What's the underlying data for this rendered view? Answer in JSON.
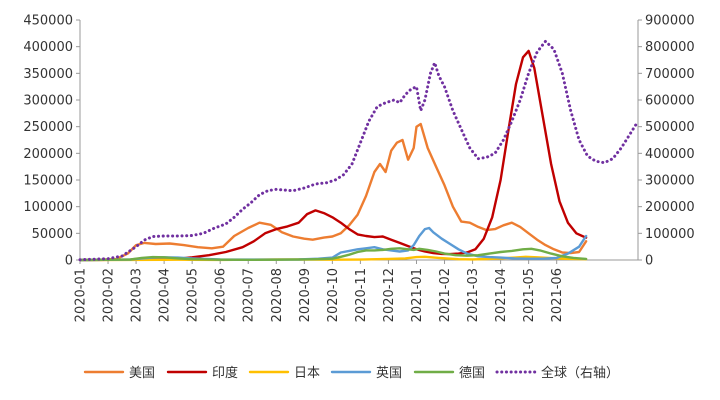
{
  "chart_data": {
    "type": "line",
    "title": "",
    "xlabel": "",
    "ylabel": "",
    "y2label": "",
    "x_categories": [
      "2020-01",
      "2020-02",
      "2020-03",
      "2020-04",
      "2020-05",
      "2020-06",
      "2020-07",
      "2020-08",
      "2020-09",
      "2020-10",
      "2020-11",
      "2020-12",
      "2021-01",
      "2021-02",
      "2021-03",
      "2021-04",
      "2021-05",
      "2021-06"
    ],
    "ylim_left": [
      0,
      450000
    ],
    "ylim_right": [
      0,
      900000
    ],
    "yticks_left": [
      "0",
      "50000",
      "100000",
      "150000",
      "200000",
      "250000",
      "300000",
      "350000",
      "400000",
      "450000"
    ],
    "yticks_right": [
      "0",
      "100000",
      "200000",
      "300000",
      "400000",
      "500000",
      "600000",
      "700000",
      "800000",
      "900000"
    ],
    "grid": false,
    "legend_position": "bottom",
    "series": [
      {
        "name": "美国",
        "axis": "left",
        "color": "#ED7D31",
        "style": "solid",
        "points": [
          [
            0,
            0
          ],
          [
            0.7,
            500
          ],
          [
            1.3,
            2000
          ],
          [
            1.7,
            12000
          ],
          [
            2.0,
            28000
          ],
          [
            2.3,
            32000
          ],
          [
            2.7,
            30000
          ],
          [
            3.2,
            31000
          ],
          [
            3.7,
            28000
          ],
          [
            4.2,
            24000
          ],
          [
            4.7,
            22000
          ],
          [
            5.1,
            25000
          ],
          [
            5.5,
            45000
          ],
          [
            6.0,
            60000
          ],
          [
            6.4,
            70000
          ],
          [
            6.8,
            66000
          ],
          [
            7.2,
            52000
          ],
          [
            7.6,
            44000
          ],
          [
            8.0,
            40000
          ],
          [
            8.3,
            38000
          ],
          [
            8.7,
            42000
          ],
          [
            9.0,
            44000
          ],
          [
            9.3,
            50000
          ],
          [
            9.6,
            65000
          ],
          [
            9.9,
            85000
          ],
          [
            10.2,
            120000
          ],
          [
            10.5,
            165000
          ],
          [
            10.7,
            180000
          ],
          [
            10.9,
            165000
          ],
          [
            11.1,
            205000
          ],
          [
            11.3,
            220000
          ],
          [
            11.5,
            225000
          ],
          [
            11.7,
            188000
          ],
          [
            11.9,
            210000
          ],
          [
            12.0,
            250000
          ],
          [
            12.15,
            255000
          ],
          [
            12.4,
            210000
          ],
          [
            12.7,
            175000
          ],
          [
            13.0,
            140000
          ],
          [
            13.3,
            100000
          ],
          [
            13.6,
            72000
          ],
          [
            13.9,
            70000
          ],
          [
            14.2,
            62000
          ],
          [
            14.5,
            56000
          ],
          [
            14.8,
            58000
          ],
          [
            15.1,
            65000
          ],
          [
            15.4,
            70000
          ],
          [
            15.7,
            62000
          ],
          [
            16.0,
            50000
          ],
          [
            16.3,
            38000
          ],
          [
            16.6,
            28000
          ],
          [
            16.9,
            20000
          ],
          [
            17.2,
            14000
          ],
          [
            17.5,
            13000
          ],
          [
            17.8,
            15000
          ],
          [
            18.05,
            35000
          ]
        ]
      },
      {
        "name": "印度",
        "axis": "left",
        "color": "#C00000",
        "style": "solid",
        "points": [
          [
            0,
            0
          ],
          [
            3.0,
            1000
          ],
          [
            3.6,
            3000
          ],
          [
            4.0,
            5000
          ],
          [
            4.6,
            9000
          ],
          [
            5.2,
            15000
          ],
          [
            5.8,
            24000
          ],
          [
            6.2,
            35000
          ],
          [
            6.6,
            50000
          ],
          [
            7.0,
            58000
          ],
          [
            7.4,
            63000
          ],
          [
            7.8,
            70000
          ],
          [
            8.1,
            86000
          ],
          [
            8.4,
            93000
          ],
          [
            8.7,
            88000
          ],
          [
            9.0,
            80000
          ],
          [
            9.3,
            70000
          ],
          [
            9.6,
            58000
          ],
          [
            9.9,
            48000
          ],
          [
            10.2,
            45000
          ],
          [
            10.5,
            43000
          ],
          [
            10.8,
            44000
          ],
          [
            11.1,
            38000
          ],
          [
            11.4,
            32000
          ],
          [
            11.7,
            26000
          ],
          [
            12.0,
            20000
          ],
          [
            12.3,
            16000
          ],
          [
            12.6,
            13000
          ],
          [
            12.9,
            11500
          ],
          [
            13.2,
            11000
          ],
          [
            13.5,
            12000
          ],
          [
            13.8,
            14000
          ],
          [
            14.1,
            20000
          ],
          [
            14.4,
            40000
          ],
          [
            14.7,
            80000
          ],
          [
            15.0,
            150000
          ],
          [
            15.3,
            250000
          ],
          [
            15.55,
            330000
          ],
          [
            15.8,
            380000
          ],
          [
            16.0,
            392000
          ],
          [
            16.2,
            360000
          ],
          [
            16.5,
            270000
          ],
          [
            16.8,
            180000
          ],
          [
            17.1,
            110000
          ],
          [
            17.4,
            70000
          ],
          [
            17.7,
            50000
          ],
          [
            18.0,
            43000
          ],
          [
            18.05,
            42000
          ]
        ]
      },
      {
        "name": "日本",
        "axis": "left",
        "color": "#FFC000",
        "style": "solid",
        "points": [
          [
            0,
            0
          ],
          [
            3.0,
            300
          ],
          [
            3.5,
            500
          ],
          [
            4.0,
            400
          ],
          [
            5.0,
            200
          ],
          [
            6.0,
            500
          ],
          [
            7.0,
            1000
          ],
          [
            7.5,
            1200
          ],
          [
            8.0,
            1000
          ],
          [
            9.0,
            600
          ],
          [
            10.0,
            700
          ],
          [
            11.0,
            2000
          ],
          [
            11.6,
            3000
          ],
          [
            12.0,
            5500
          ],
          [
            12.3,
            6000
          ],
          [
            12.8,
            4000
          ],
          [
            13.5,
            1500
          ],
          [
            14.0,
            1200
          ],
          [
            14.5,
            1800
          ],
          [
            15.0,
            3000
          ],
          [
            15.5,
            4500
          ],
          [
            15.9,
            6000
          ],
          [
            16.3,
            5000
          ],
          [
            16.8,
            3500
          ],
          [
            17.3,
            2200
          ],
          [
            18.05,
            1500
          ]
        ]
      },
      {
        "name": "英国",
        "axis": "left",
        "color": "#5B9BD5",
        "style": "solid",
        "points": [
          [
            0,
            0
          ],
          [
            1.8,
            1000
          ],
          [
            2.2,
            3000
          ],
          [
            2.6,
            4500
          ],
          [
            3.0,
            5000
          ],
          [
            3.5,
            4500
          ],
          [
            4.0,
            3000
          ],
          [
            4.5,
            1800
          ],
          [
            5.0,
            1000
          ],
          [
            6.0,
            700
          ],
          [
            7.0,
            800
          ],
          [
            7.8,
            1000
          ],
          [
            8.5,
            2500
          ],
          [
            9.0,
            4500
          ],
          [
            9.3,
            14000
          ],
          [
            9.6,
            17000
          ],
          [
            9.9,
            20000
          ],
          [
            10.2,
            22000
          ],
          [
            10.5,
            24000
          ],
          [
            10.8,
            20000
          ],
          [
            11.1,
            18000
          ],
          [
            11.4,
            16000
          ],
          [
            11.7,
            18000
          ],
          [
            11.9,
            28000
          ],
          [
            12.1,
            45000
          ],
          [
            12.3,
            58000
          ],
          [
            12.45,
            60000
          ],
          [
            12.6,
            52000
          ],
          [
            12.9,
            40000
          ],
          [
            13.2,
            30000
          ],
          [
            13.5,
            20000
          ],
          [
            13.8,
            12000
          ],
          [
            14.2,
            7000
          ],
          [
            14.6,
            5500
          ],
          [
            15.0,
            4500
          ],
          [
            15.5,
            3000
          ],
          [
            16.0,
            2500
          ],
          [
            16.5,
            2500
          ],
          [
            17.0,
            4000
          ],
          [
            17.4,
            12000
          ],
          [
            17.8,
            25000
          ],
          [
            18.05,
            45000
          ]
        ]
      },
      {
        "name": "德国",
        "axis": "left",
        "color": "#70AD47",
        "style": "solid",
        "points": [
          [
            0,
            0
          ],
          [
            1.8,
            1000
          ],
          [
            2.2,
            4000
          ],
          [
            2.6,
            5500
          ],
          [
            3.0,
            5000
          ],
          [
            3.5,
            3000
          ],
          [
            4.0,
            1500
          ],
          [
            5.0,
            600
          ],
          [
            6.0,
            400
          ],
          [
            7.0,
            600
          ],
          [
            8.0,
            1200
          ],
          [
            8.6,
            1600
          ],
          [
            9.0,
            2500
          ],
          [
            9.3,
            6000
          ],
          [
            9.6,
            10000
          ],
          [
            9.9,
            15000
          ],
          [
            10.2,
            18000
          ],
          [
            10.5,
            18000
          ],
          [
            10.8,
            19000
          ],
          [
            11.1,
            21000
          ],
          [
            11.4,
            22000
          ],
          [
            11.7,
            20000
          ],
          [
            11.9,
            19000
          ],
          [
            12.1,
            21000
          ],
          [
            12.4,
            19000
          ],
          [
            12.7,
            16000
          ],
          [
            13.0,
            12000
          ],
          [
            13.4,
            9000
          ],
          [
            13.8,
            8000
          ],
          [
            14.2,
            9000
          ],
          [
            14.6,
            12000
          ],
          [
            15.0,
            15000
          ],
          [
            15.4,
            17000
          ],
          [
            15.8,
            20000
          ],
          [
            16.1,
            21000
          ],
          [
            16.4,
            18000
          ],
          [
            16.8,
            12000
          ],
          [
            17.2,
            7000
          ],
          [
            17.6,
            4000
          ],
          [
            18.05,
            2000
          ]
        ]
      },
      {
        "name": "全球（右轴）",
        "axis": "right",
        "color": "#7030A0",
        "style": "dotted",
        "points": [
          [
            0,
            1000
          ],
          [
            1.0,
            5000
          ],
          [
            1.5,
            15000
          ],
          [
            2.0,
            50000
          ],
          [
            2.3,
            75000
          ],
          [
            2.6,
            88000
          ],
          [
            3.0,
            90000
          ],
          [
            3.5,
            90000
          ],
          [
            4.0,
            92000
          ],
          [
            4.4,
            100000
          ],
          [
            4.8,
            120000
          ],
          [
            5.2,
            135000
          ],
          [
            5.5,
            160000
          ],
          [
            5.8,
            190000
          ],
          [
            6.1,
            215000
          ],
          [
            6.4,
            245000
          ],
          [
            6.7,
            260000
          ],
          [
            7.0,
            265000
          ],
          [
            7.3,
            262000
          ],
          [
            7.6,
            260000
          ],
          [
            8.0,
            270000
          ],
          [
            8.4,
            285000
          ],
          [
            8.8,
            290000
          ],
          [
            9.1,
            300000
          ],
          [
            9.4,
            320000
          ],
          [
            9.7,
            360000
          ],
          [
            10.0,
            440000
          ],
          [
            10.3,
            520000
          ],
          [
            10.6,
            575000
          ],
          [
            10.9,
            590000
          ],
          [
            11.2,
            600000
          ],
          [
            11.4,
            590000
          ],
          [
            11.6,
            620000
          ],
          [
            11.8,
            640000
          ],
          [
            12.0,
            650000
          ],
          [
            12.15,
            560000
          ],
          [
            12.3,
            600000
          ],
          [
            12.5,
            700000
          ],
          [
            12.65,
            740000
          ],
          [
            12.8,
            690000
          ],
          [
            13.0,
            650000
          ],
          [
            13.3,
            560000
          ],
          [
            13.6,
            490000
          ],
          [
            13.9,
            420000
          ],
          [
            14.2,
            380000
          ],
          [
            14.5,
            385000
          ],
          [
            14.8,
            400000
          ],
          [
            15.1,
            450000
          ],
          [
            15.4,
            520000
          ],
          [
            15.7,
            600000
          ],
          [
            16.0,
            700000
          ],
          [
            16.3,
            780000
          ],
          [
            16.6,
            820000
          ],
          [
            16.9,
            790000
          ],
          [
            17.2,
            700000
          ],
          [
            17.5,
            560000
          ],
          [
            17.8,
            450000
          ],
          [
            18.1,
            390000
          ],
          [
            18.4,
            370000
          ],
          [
            18.7,
            365000
          ],
          [
            19.0,
            380000
          ],
          [
            19.3,
            420000
          ],
          [
            19.6,
            470000
          ],
          [
            19.9,
            520000
          ]
        ]
      }
    ]
  }
}
